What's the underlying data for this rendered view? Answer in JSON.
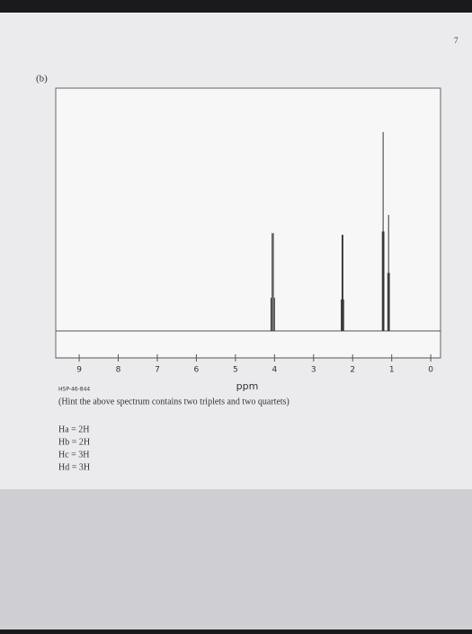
{
  "page_number": "7",
  "label": "(b)",
  "code": "HSP-46-844",
  "hint": "(Hint the above spectrum contains two triplets and two quartets)",
  "assignments": [
    "Ha = 2H",
    "Hb = 2H",
    "Hc = 3H",
    "Hd = 3H"
  ],
  "chart_data": {
    "type": "stick",
    "x_label": "ppm",
    "x": [
      4.09,
      4.06,
      4.03,
      4.0,
      2.29,
      2.27,
      2.25,
      2.23,
      1.24,
      1.22,
      1.2,
      1.1,
      1.08,
      1.06
    ],
    "values": [
      40,
      118,
      118,
      40,
      38,
      116,
      116,
      38,
      120,
      240,
      120,
      70,
      140,
      70
    ],
    "xlim": [
      9.6,
      -0.25
    ],
    "ylim": [
      0,
      280
    ],
    "xticks": [
      9,
      8,
      7,
      6,
      5,
      4,
      3,
      2,
      1,
      0
    ],
    "color": "#333333"
  }
}
